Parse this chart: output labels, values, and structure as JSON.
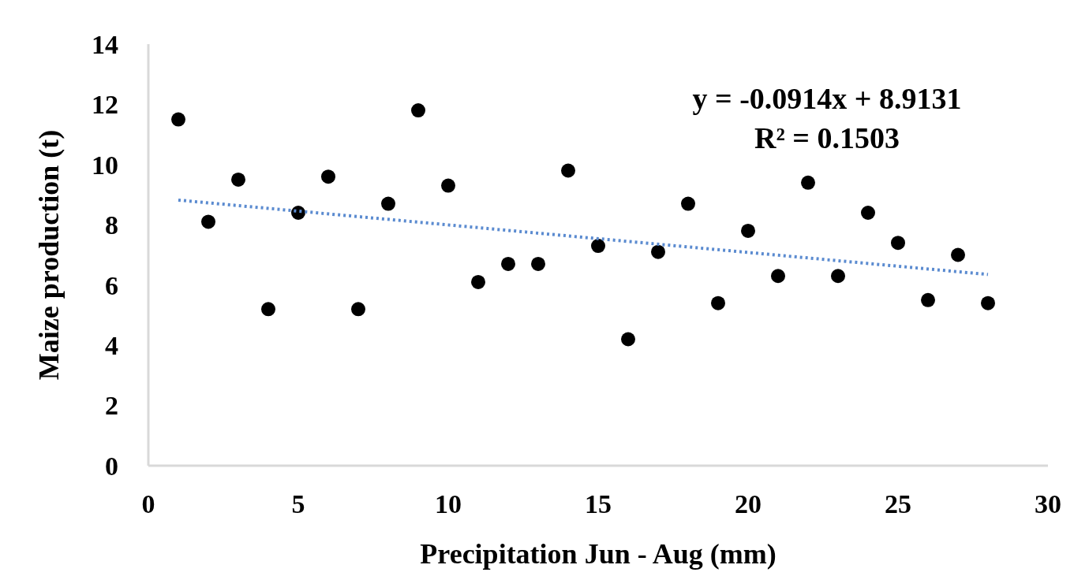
{
  "chart_data": {
    "type": "scatter",
    "xlabel": "Precipitation  Jun - Aug (mm)",
    "ylabel": "Maize  production  (t)",
    "xlim": [
      0,
      30
    ],
    "ylim": [
      0,
      14
    ],
    "xticks": [
      0,
      5,
      10,
      15,
      20,
      25,
      30
    ],
    "yticks": [
      0,
      2,
      4,
      6,
      8,
      10,
      12,
      14
    ],
    "annotations": [
      "y = -0.0914x + 8.9131",
      "R² = 0.1503"
    ],
    "series": [
      {
        "color": "#000000",
        "marker": "circle",
        "x": [
          1,
          2,
          3,
          4,
          5,
          6,
          7,
          8,
          9,
          10,
          11,
          12,
          13,
          14,
          15,
          16,
          17,
          18,
          19,
          20,
          21,
          22,
          23,
          24,
          25,
          26,
          27,
          28
        ],
        "values": [
          11.5,
          8.1,
          9.5,
          5.2,
          8.4,
          9.6,
          5.2,
          8.7,
          11.8,
          9.3,
          6.1,
          6.7,
          6.7,
          9.8,
          7.3,
          4.2,
          7.1,
          8.7,
          5.4,
          7.8,
          6.3,
          9.4,
          6.3,
          8.4,
          7.4,
          5.5,
          7.0,
          5.4
        ]
      },
      {
        "type": "line",
        "color": "#5b8bd0",
        "line_style": "dotted",
        "x": [
          1,
          28
        ],
        "values": [
          8.82,
          6.35
        ]
      }
    ]
  }
}
